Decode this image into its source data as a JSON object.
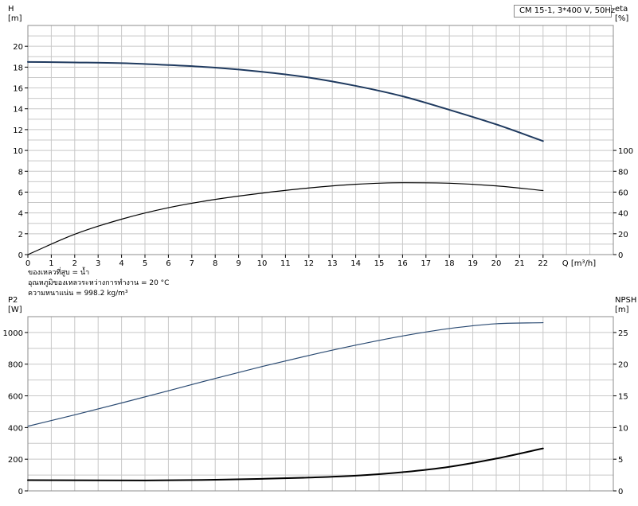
{
  "model_label": "CM 15-1, 3*400 V, 50Hz",
  "notes": [
    "ของเหลวที่สูบ = น้ำ",
    "อุณหภูมิของเหลวระหว่างการทำงาน = 20 °C",
    "ความหนาแน่น = 998.2 kg/m³"
  ],
  "colors": {
    "grid": "#c8c8c8",
    "frame": "#8c8c8c",
    "head_curve": "#1f3a5f",
    "p2_curve": "#2a4a72",
    "black_curve": "#000000"
  },
  "chart_data": [
    {
      "type": "line",
      "title": "",
      "x_axis": {
        "label": "Q [m³/h]",
        "range": [
          0,
          25
        ],
        "ticks": [
          0,
          1,
          2,
          3,
          4,
          5,
          6,
          7,
          8,
          9,
          10,
          11,
          12,
          13,
          14,
          15,
          16,
          17,
          18,
          19,
          20,
          21,
          22
        ]
      },
      "y_left": {
        "label": "H",
        "unit": "[m]",
        "range": [
          0,
          22
        ],
        "ticks": [
          0,
          2,
          4,
          6,
          8,
          10,
          12,
          14,
          16,
          18,
          20
        ]
      },
      "y_right": {
        "label": "eta",
        "unit": "[%]",
        "range": [
          0,
          220
        ],
        "ticks": [
          0,
          20,
          40,
          60,
          80,
          100
        ]
      },
      "grid": true,
      "series": [
        {
          "axis": "left",
          "color": "#1f3a5f",
          "x": [
            0,
            2,
            4,
            6,
            8,
            10,
            12,
            14,
            16,
            18,
            20,
            22
          ],
          "y": [
            18.5,
            18.45,
            18.38,
            18.2,
            17.95,
            17.55,
            17.0,
            16.2,
            15.2,
            13.9,
            12.5,
            10.9
          ]
        },
        {
          "axis": "right",
          "color": "#000000",
          "x": [
            0,
            2,
            4,
            6,
            8,
            10,
            12,
            14,
            16,
            18,
            20,
            22
          ],
          "y": [
            0,
            19.5,
            34,
            45,
            53,
            59,
            64,
            67.5,
            69,
            68.5,
            66,
            61.5
          ]
        }
      ]
    },
    {
      "type": "line",
      "title": "",
      "x_axis": {
        "label": "",
        "range": [
          0,
          25
        ],
        "ticks": []
      },
      "y_left": {
        "label": "P2",
        "unit": "[W]",
        "range": [
          0,
          1100
        ],
        "ticks": [
          0,
          200,
          400,
          600,
          800,
          1000
        ]
      },
      "y_right": {
        "label": "NPSH",
        "unit": "[m]",
        "range": [
          0,
          27.5
        ],
        "ticks": [
          0,
          5,
          10,
          15,
          20,
          25
        ]
      },
      "grid": true,
      "series": [
        {
          "axis": "left",
          "color": "#2a4a72",
          "x": [
            0,
            2,
            4,
            6,
            8,
            10,
            12,
            14,
            16,
            18,
            20,
            22
          ],
          "y": [
            408,
            480,
            555,
            632,
            710,
            785,
            855,
            920,
            978,
            1025,
            1055,
            1062
          ]
        },
        {
          "axis": "right",
          "color": "#000000",
          "x": [
            0,
            5,
            8,
            10,
            12,
            14,
            16,
            18,
            20,
            22
          ],
          "y": [
            1.7,
            1.65,
            1.75,
            1.9,
            2.1,
            2.4,
            2.95,
            3.8,
            5.1,
            6.7
          ]
        }
      ]
    }
  ]
}
